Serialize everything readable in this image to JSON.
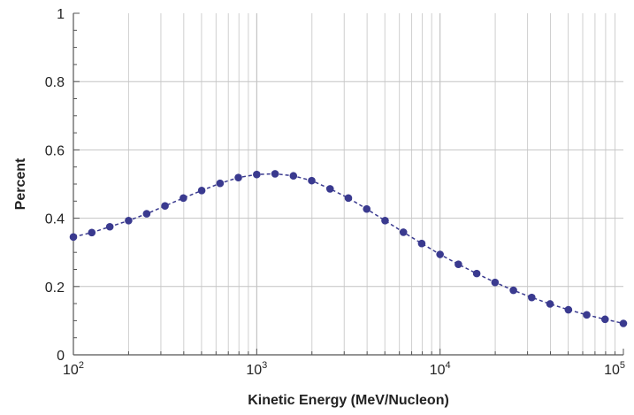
{
  "chart_data": {
    "type": "scatter",
    "title": "",
    "xlabel": "Kinetic Energy (MeV/Nucleon)",
    "ylabel": "Percent",
    "x_scale": "log",
    "xlim": [
      100,
      100000
    ],
    "ylim": [
      0,
      1
    ],
    "x_ticks": [
      {
        "base": "10",
        "exp": "2",
        "value": 100
      },
      {
        "base": "10",
        "exp": "3",
        "value": 1000
      },
      {
        "base": "10",
        "exp": "4",
        "value": 10000
      },
      {
        "base": "10",
        "exp": "5",
        "value": 100000
      }
    ],
    "y_ticks": [
      {
        "label": "0",
        "value": 0
      },
      {
        "label": "0.2",
        "value": 0.2
      },
      {
        "label": "0.4",
        "value": 0.4
      },
      {
        "label": "0.6",
        "value": 0.6
      },
      {
        "label": "0.8",
        "value": 0.8
      },
      {
        "label": "1",
        "value": 1
      }
    ],
    "grid": true,
    "marker_color": "#3a3a8f",
    "line_style": "dashed",
    "series": [
      {
        "x": [
          100,
          126,
          158,
          200,
          251,
          316,
          398,
          501,
          631,
          794,
          1000,
          1259,
          1585,
          1995,
          2512,
          3162,
          3981,
          5012,
          6310,
          7943,
          10000,
          12589,
          15849,
          19953,
          25119,
          31623,
          39811,
          50119,
          63096,
          79433,
          100000
        ],
        "y": [
          0.345,
          0.358,
          0.375,
          0.393,
          0.413,
          0.436,
          0.459,
          0.481,
          0.502,
          0.519,
          0.528,
          0.53,
          0.524,
          0.51,
          0.486,
          0.459,
          0.427,
          0.393,
          0.359,
          0.326,
          0.294,
          0.265,
          0.238,
          0.212,
          0.189,
          0.168,
          0.149,
          0.132,
          0.117,
          0.104,
          0.092
        ]
      }
    ]
  }
}
